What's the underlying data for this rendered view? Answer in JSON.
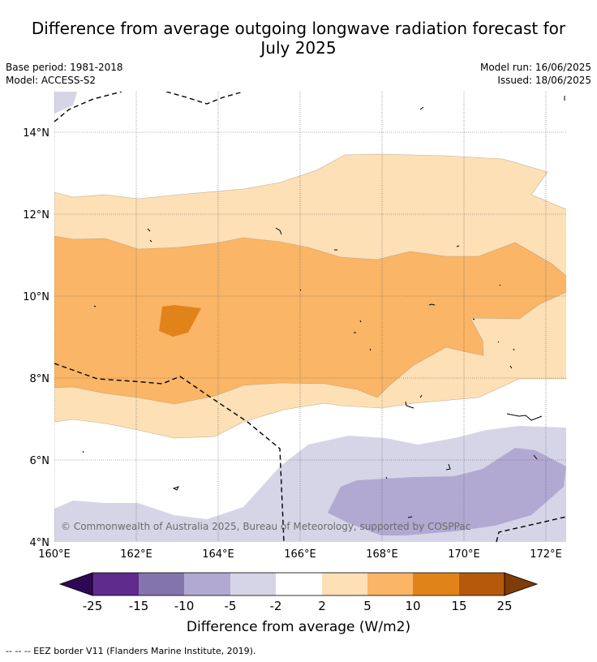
{
  "title_line1": "Difference from average outgoing longwave radiation forecast for",
  "title_line2": "July 2025",
  "base_period": "Base period: 1981-2018",
  "model": "Model: ACCESS-S2",
  "model_run": "Model run: 16/06/2025",
  "issued": "Issued: 18/06/2025",
  "copyright": "© Commonwealth of Australia 2025, Bureau of Meteorology, supported by COSPPac",
  "footnote": "--  --  -- EEZ border V11 (Flanders Marine Institute, 2019).",
  "map": {
    "lon_range": [
      160,
      172.5
    ],
    "lat_range": [
      4,
      15
    ],
    "lon_ticks": [
      "160°E",
      "162°E",
      "164°E",
      "166°E",
      "168°E",
      "170°E",
      "172°E"
    ],
    "lat_ticks": [
      "4°N",
      "6°N",
      "8°N",
      "10°N",
      "12°N",
      "14°N"
    ],
    "gridlines": true
  },
  "colorbar": {
    "title": "Difference from average (W/m2)",
    "labels": [
      "-25",
      "-15",
      "-10",
      "-5",
      "-2",
      "2",
      "5",
      "10",
      "15",
      "25"
    ],
    "colors": [
      "#2e0854",
      "#5e2b8c",
      "#8474ae",
      "#b1a9d2",
      "#d6d5e8",
      "#ffffff",
      "#fde0b5",
      "#fab566",
      "#e0841a",
      "#b55a0b",
      "#7f3b08"
    ]
  },
  "legend": {
    "eez_border": "EEZ border V11 (Flanders Marine Institute, 2019)."
  }
}
